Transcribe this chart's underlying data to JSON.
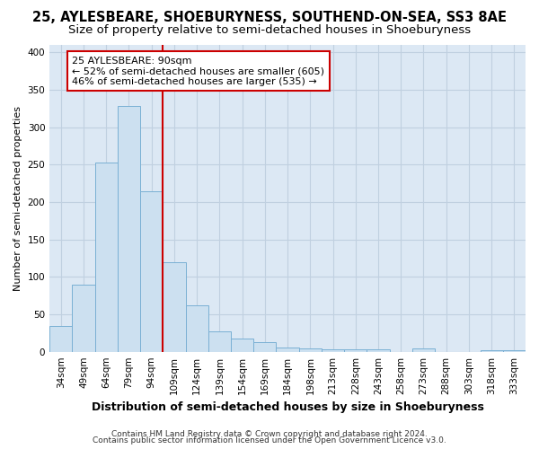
{
  "title": "25, AYLESBEARE, SHOEBURYNESS, SOUTHEND-ON-SEA, SS3 8AE",
  "subtitle": "Size of property relative to semi-detached houses in Shoeburyness",
  "xlabel": "Distribution of semi-detached houses by size in Shoeburyness",
  "ylabel": "Number of semi-detached properties",
  "categories": [
    "34sqm",
    "49sqm",
    "64sqm",
    "79sqm",
    "94sqm",
    "109sqm",
    "124sqm",
    "139sqm",
    "154sqm",
    "169sqm",
    "184sqm",
    "198sqm",
    "213sqm",
    "228sqm",
    "243sqm",
    "258sqm",
    "273sqm",
    "288sqm",
    "303sqm",
    "318sqm",
    "333sqm"
  ],
  "values": [
    35,
    90,
    253,
    328,
    215,
    120,
    62,
    27,
    18,
    13,
    6,
    5,
    3,
    3,
    3,
    0,
    5,
    0,
    0,
    2,
    2
  ],
  "bar_color": "#cce0f0",
  "bar_edge_color": "#7ab0d4",
  "bar_width": 1.0,
  "red_line_x": 4.5,
  "annotation_text_line1": "25 AYLESBEARE: 90sqm",
  "annotation_text_line2": "← 52% of semi-detached houses are smaller (605)",
  "annotation_text_line3": "46% of semi-detached houses are larger (535) →",
  "red_line_color": "#cc0000",
  "annotation_box_facecolor": "#ffffff",
  "annotation_box_edgecolor": "#cc0000",
  "grid_color": "#c0d0e0",
  "background_color": "#dce8f4",
  "ylim": [
    0,
    410
  ],
  "yticks": [
    0,
    50,
    100,
    150,
    200,
    250,
    300,
    350,
    400
  ],
  "footer_line1": "Contains HM Land Registry data © Crown copyright and database right 2024.",
  "footer_line2": "Contains public sector information licensed under the Open Government Licence v3.0.",
  "title_fontsize": 10.5,
  "subtitle_fontsize": 9.5,
  "xlabel_fontsize": 9,
  "ylabel_fontsize": 8,
  "tick_fontsize": 7.5,
  "annotation_fontsize": 8,
  "footer_fontsize": 6.5
}
